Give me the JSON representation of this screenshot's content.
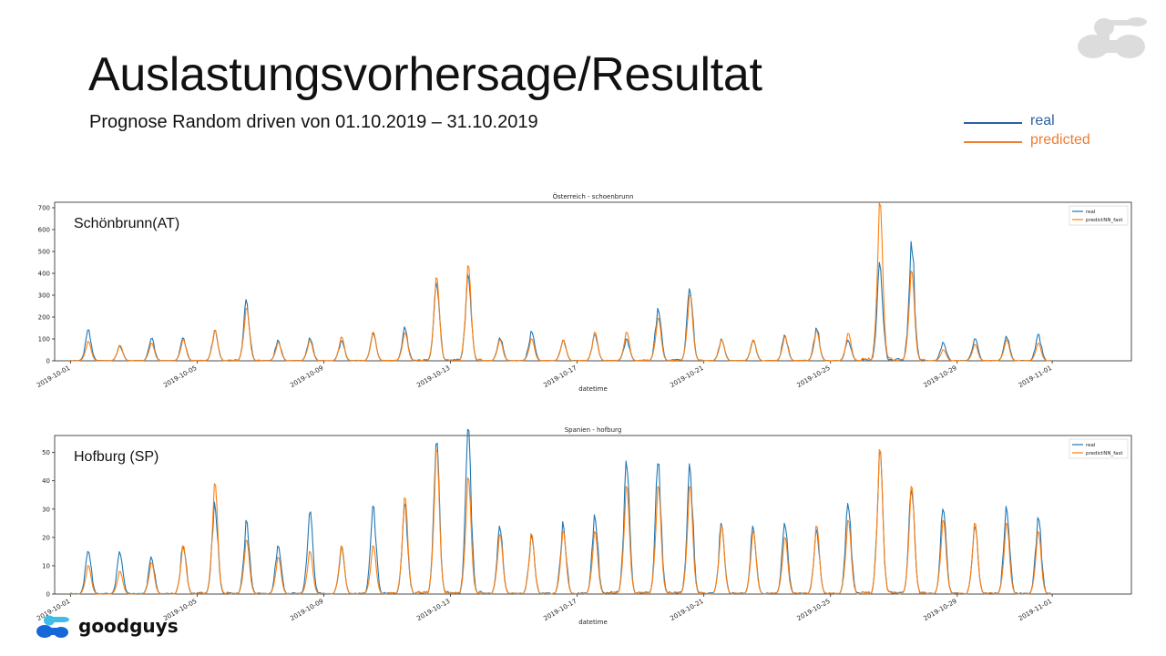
{
  "slide": {
    "title": "Auslastungsvorhersage/Resultat",
    "subtitle": "Prognose Random driven von 01.10.2019 – 31.10.2019",
    "legend": [
      {
        "label": "real",
        "color": "#2e5fa0"
      },
      {
        "label": "predicted",
        "color": "#ed7d31"
      }
    ],
    "logo_text": "goodguys"
  },
  "colors": {
    "real": "#1f77b4",
    "predicted": "#ff7f0e",
    "logo_blue": "#1668d8",
    "logo_cyan": "#3fbde8",
    "brand_gray": "#dcdcdc"
  },
  "chart_data": [
    {
      "type": "line",
      "title": "Österreich - schoenbrunn",
      "overlay_label": "Schönbrunn(AT)",
      "xlabel": "datetime",
      "ylabel": "",
      "x_ticks": [
        "2019-10-01",
        "2019-10-05",
        "2019-10-09",
        "2019-10-13",
        "2019-10-17",
        "2019-10-21",
        "2019-10-25",
        "2019-10-29",
        "2019-11-01"
      ],
      "y_ticks": [
        0,
        100,
        200,
        300,
        400,
        500,
        600,
        700
      ],
      "ylim": [
        0,
        725
      ],
      "xlim": [
        "2019-09-30T12:00",
        "2019-11-03T12:00"
      ],
      "grid": false,
      "legend_position": "top-right",
      "daily_x": [
        "2019-10-01",
        "2019-10-02",
        "2019-10-03",
        "2019-10-04",
        "2019-10-05",
        "2019-10-06",
        "2019-10-07",
        "2019-10-08",
        "2019-10-09",
        "2019-10-10",
        "2019-10-11",
        "2019-10-12",
        "2019-10-13",
        "2019-10-14",
        "2019-10-15",
        "2019-10-16",
        "2019-10-17",
        "2019-10-18",
        "2019-10-19",
        "2019-10-20",
        "2019-10-21",
        "2019-10-22",
        "2019-10-23",
        "2019-10-24",
        "2019-10-25",
        "2019-10-26",
        "2019-10-27",
        "2019-10-28",
        "2019-10-29",
        "2019-10-30",
        "2019-10-31"
      ],
      "series": [
        {
          "name": "real",
          "color": "#1f77b4",
          "daily_peak": [
            140,
            68,
            100,
            105,
            135,
            280,
            95,
            105,
            90,
            128,
            155,
            360,
            385,
            105,
            135,
            90,
            120,
            100,
            240,
            330,
            100,
            90,
            118,
            150,
            95,
            450,
            535,
            85,
            100,
            110,
            120
          ]
        },
        {
          "name": "predictNN_fast",
          "color": "#ff7f0e",
          "daily_peak": [
            88,
            70,
            80,
            95,
            140,
            240,
            82,
            92,
            108,
            130,
            128,
            380,
            435,
            95,
            100,
            95,
            130,
            130,
            195,
            300,
            95,
            95,
            110,
            135,
            125,
            720,
            410,
            50,
            75,
            95,
            80
          ]
        }
      ]
    },
    {
      "type": "line",
      "title": "Spanien - hofburg",
      "overlay_label": "Hofburg (SP)",
      "xlabel": "datetime",
      "ylabel": "",
      "x_ticks": [
        "2019-10-01",
        "2019-10-05",
        "2019-10-09",
        "2019-10-13",
        "2019-10-17",
        "2019-10-21",
        "2019-10-25",
        "2019-10-29",
        "2019-11-01"
      ],
      "y_ticks": [
        0,
        10,
        20,
        30,
        40,
        50
      ],
      "ylim": [
        0,
        56
      ],
      "xlim": [
        "2019-09-30T12:00",
        "2019-11-03T12:00"
      ],
      "grid": false,
      "legend_position": "top-right",
      "daily_x": [
        "2019-10-01",
        "2019-10-02",
        "2019-10-03",
        "2019-10-04",
        "2019-10-05",
        "2019-10-06",
        "2019-10-07",
        "2019-10-08",
        "2019-10-09",
        "2019-10-10",
        "2019-10-11",
        "2019-10-12",
        "2019-10-13",
        "2019-10-14",
        "2019-10-15",
        "2019-10-16",
        "2019-10-17",
        "2019-10-18",
        "2019-10-19",
        "2019-10-20",
        "2019-10-21",
        "2019-10-22",
        "2019-10-23",
        "2019-10-24",
        "2019-10-25",
        "2019-10-26",
        "2019-10-27",
        "2019-10-28",
        "2019-10-29",
        "2019-10-30",
        "2019-10-31"
      ],
      "series": [
        {
          "name": "real",
          "color": "#1f77b4",
          "daily_peak": [
            15,
            15,
            13,
            17,
            32,
            26,
            17,
            28,
            16,
            30,
            31,
            53,
            56,
            24,
            21,
            25,
            28,
            47,
            46,
            46,
            25,
            24,
            25,
            23,
            32,
            48,
            37,
            30,
            24,
            31,
            27
          ]
        },
        {
          "name": "predictNN_fast",
          "color": "#ff7f0e",
          "daily_peak": [
            10,
            8,
            11,
            17,
            39,
            19,
            13,
            15,
            17,
            17,
            34,
            51,
            41,
            21,
            21,
            22,
            22,
            38,
            38,
            38,
            24,
            22,
            20,
            24,
            26,
            51,
            38,
            26,
            25,
            25,
            22
          ]
        }
      ]
    }
  ]
}
